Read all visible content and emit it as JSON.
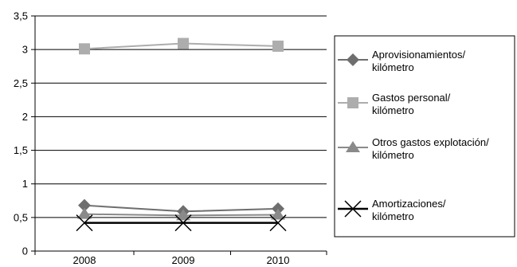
{
  "chart_data": {
    "type": "line",
    "categories": [
      "2008",
      "2009",
      "2010"
    ],
    "ylim": [
      0,
      3.5
    ],
    "yticks": [
      "0",
      "0,5",
      "1",
      "1,5",
      "2",
      "2,5",
      "3",
      "3,5"
    ],
    "grid": true,
    "legend_position": "right",
    "series": [
      {
        "name": [
          "Aprovisionamientos/",
          "kilómetro"
        ],
        "values": [
          0.68,
          0.59,
          0.63
        ],
        "color": "#6e6e6e",
        "marker": "diamond"
      },
      {
        "name": [
          "Gastos personal/",
          "kilómetro"
        ],
        "values": [
          3.01,
          3.09,
          3.05
        ],
        "color": "#adadad",
        "marker": "square"
      },
      {
        "name": [
          "Otros gastos explotación/",
          "kilómetro"
        ],
        "values": [
          0.55,
          0.53,
          0.54
        ],
        "color": "#8a8a8a",
        "marker": "triangle"
      },
      {
        "name": [
          "Amortizaciones/",
          "kilómetro"
        ],
        "values": [
          0.42,
          0.42,
          0.42
        ],
        "color": "#000000",
        "marker": "x"
      }
    ]
  }
}
